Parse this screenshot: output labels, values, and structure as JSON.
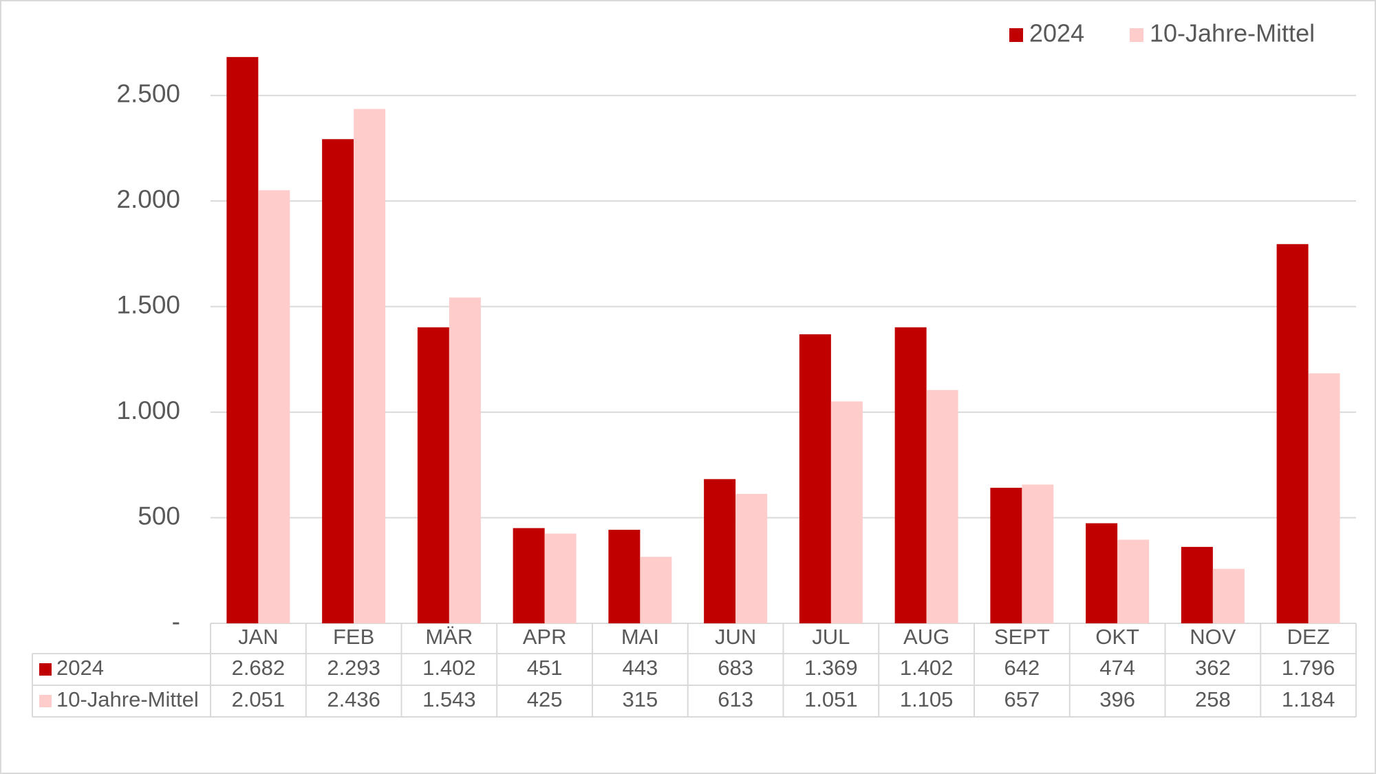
{
  "chart_data": {
    "type": "bar",
    "categories": [
      "JAN",
      "FEB",
      "MÄR",
      "APR",
      "MAI",
      "JUN",
      "JUL",
      "AUG",
      "SEPT",
      "OKT",
      "NOV",
      "DEZ"
    ],
    "series": [
      {
        "name": "2024",
        "color": "#c00000",
        "values": [
          2682,
          2293,
          1402,
          451,
          443,
          683,
          1369,
          1402,
          642,
          474,
          362,
          1796
        ],
        "value_labels": [
          "2.682",
          "2.293",
          "1.402",
          "451",
          "443",
          "683",
          "1.369",
          "1.402",
          "642",
          "474",
          "362",
          "1.796"
        ]
      },
      {
        "name": "10-Jahre-Mittel",
        "color": "#ffcccc",
        "values": [
          2051,
          2436,
          1543,
          425,
          315,
          613,
          1051,
          1105,
          657,
          396,
          258,
          1184
        ],
        "value_labels": [
          "2.051",
          "2.436",
          "1.543",
          "425",
          "315",
          "613",
          "1.051",
          "1.105",
          "657",
          "396",
          "258",
          "1.184"
        ]
      }
    ],
    "ylim": [
      0,
      2750
    ],
    "yticks": [
      {
        "value": 0,
        "label": "-"
      },
      500,
      {
        "value": 1000,
        "label": "1.000"
      },
      {
        "value": 1500,
        "label": "1.500"
      },
      {
        "value": 2000,
        "label": "2.000"
      },
      {
        "value": 2500,
        "label": "2.500"
      }
    ],
    "grid": true,
    "legend": "top-right"
  }
}
